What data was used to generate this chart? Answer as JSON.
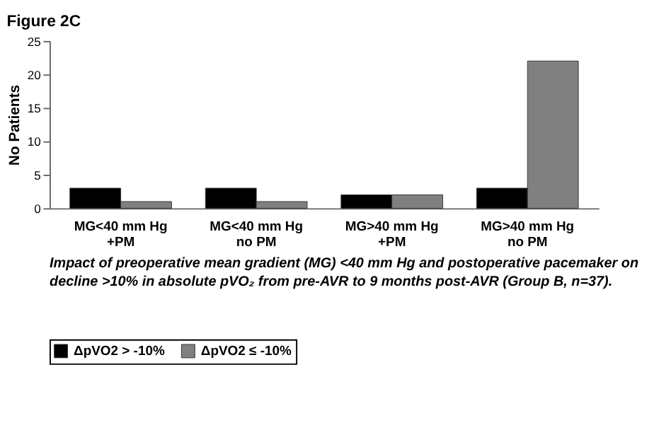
{
  "chart_data": {
    "type": "bar",
    "title": "Figure 2C",
    "ylabel": "No Patients",
    "categories": [
      "MG<40 mm Hg\n+PM",
      "MG<40 mm Hg\nno PM",
      "MG>40 mm Hg\n+PM",
      "MG>40 mm Hg\nno PM"
    ],
    "series": [
      {
        "name": "ΔpVO2 > -10%",
        "color": "#000000",
        "values": [
          3,
          3,
          2,
          3
        ]
      },
      {
        "name": "ΔpVO2 ≤ -10%",
        "color": "#808080",
        "values": [
          1,
          1,
          2,
          22
        ]
      }
    ],
    "ylim": [
      0,
      25
    ],
    "yticks": [
      0,
      5,
      10,
      15,
      20,
      25
    ],
    "grid": false,
    "legend": "bottom",
    "annotations": [
      "Impact of preoperative mean gradient (MG) <40 mm Hg and postoperative pacemaker on decline >10% in absolute pVO₂ from pre-AVR to 9 months post-AVR (Group B, n=37)."
    ]
  }
}
